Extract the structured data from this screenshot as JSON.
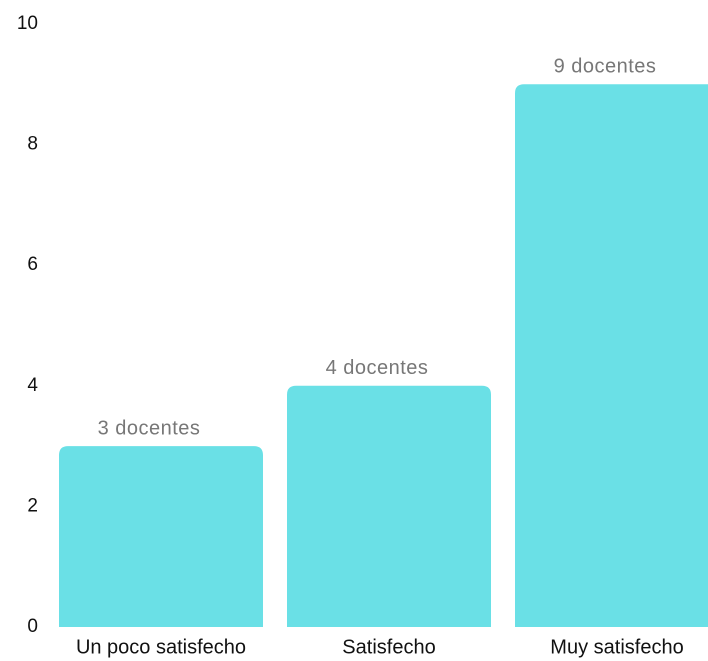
{
  "chart_data": {
    "type": "bar",
    "categories": [
      "Un poco satisfecho",
      "Satisfecho",
      "Muy satisfecho"
    ],
    "values": [
      3,
      4,
      9
    ],
    "value_labels": [
      "3 docentes",
      "4 docentes",
      "9 docentes"
    ],
    "color": "#6ae0e6",
    "ylim": [
      0,
      10
    ],
    "yticks": [
      0,
      2,
      4,
      6,
      8,
      10
    ],
    "grid": false
  }
}
